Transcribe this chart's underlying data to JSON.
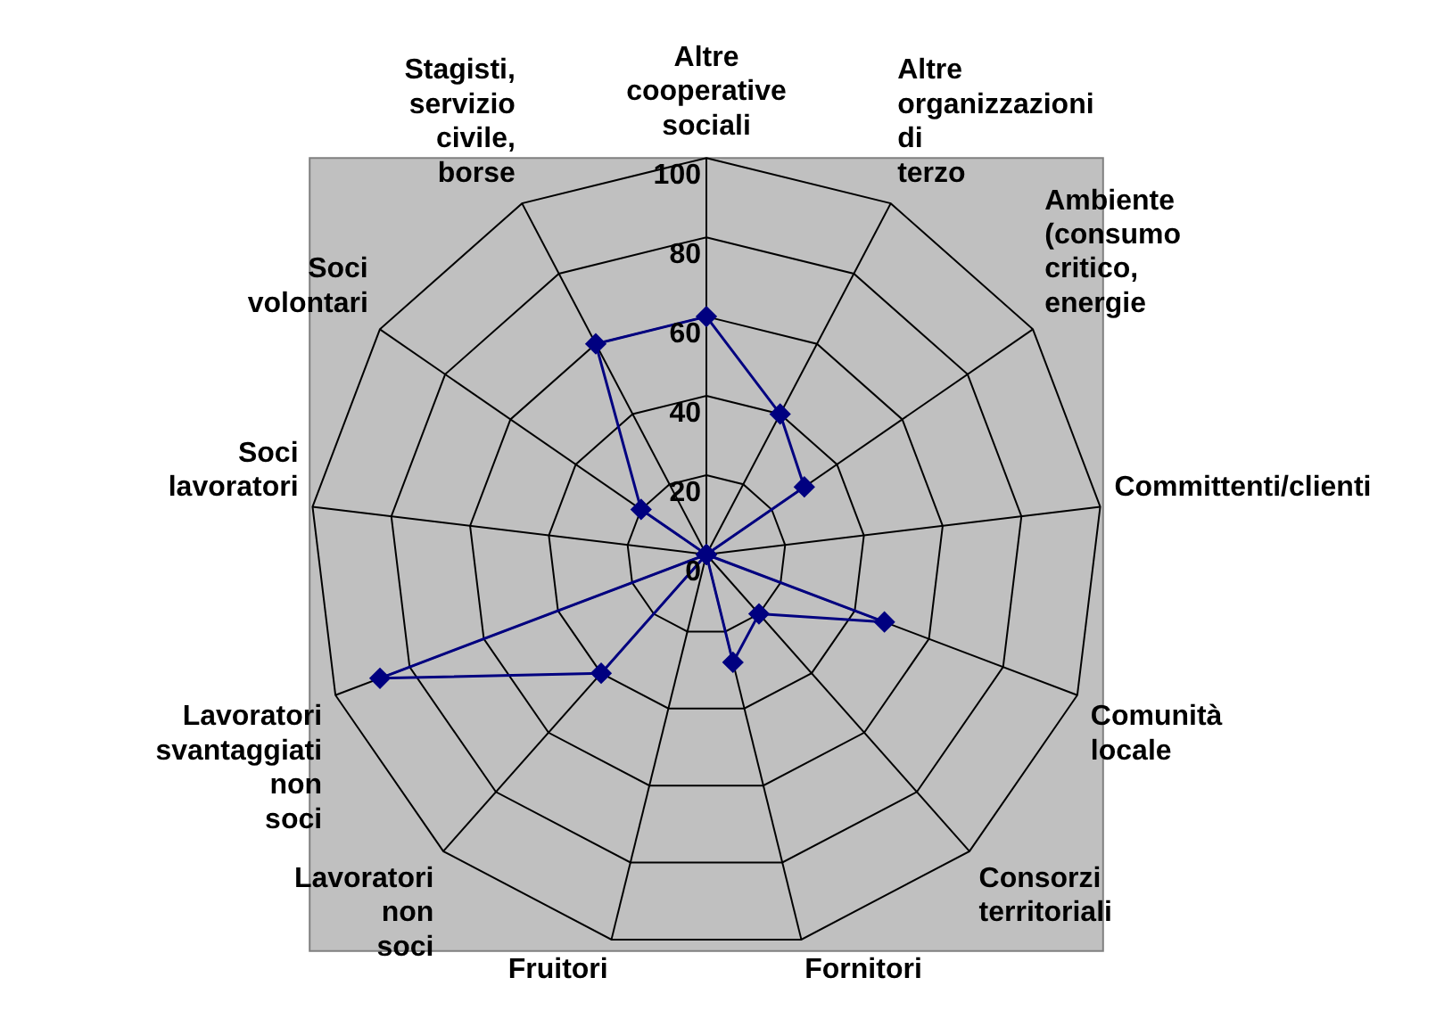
{
  "chart_data": {
    "type": "radar",
    "categories": [
      "Altre cooperative sociali",
      "Altre organizzazioni di terzo",
      "Ambiente (consumo critico, energie",
      "Committenti/clienti",
      "Comunità locale",
      "Consorzi territoriali",
      "Fornitori",
      "Fruitori",
      "Lavoratori non soci",
      "Lavoratori svantaggiati non soci",
      "Soci lavoratori",
      "Soci volontari",
      "Stagisti, servizio civile, borse"
    ],
    "series": [
      {
        "color": "#000080",
        "values": [
          60,
          40,
          30,
          0,
          48,
          20,
          28,
          0,
          40,
          88,
          0,
          20,
          60
        ]
      }
    ],
    "ylim": [
      0,
      100
    ],
    "yticks": [
      0,
      20,
      40,
      60,
      80,
      100
    ],
    "grid": true,
    "legend": false,
    "marker": "diamond",
    "line_style": "solid"
  }
}
